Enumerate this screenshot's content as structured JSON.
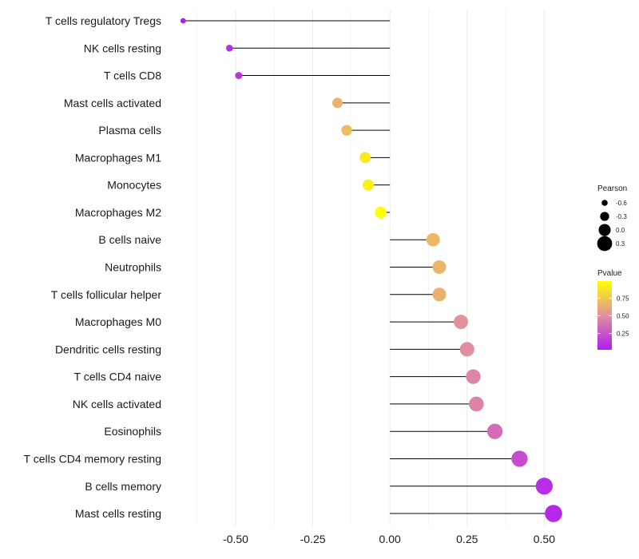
{
  "chart_data": {
    "type": "lollipop",
    "title": "",
    "xlabel": "",
    "ylabel": "",
    "xlim": [
      -0.72,
      0.6
    ],
    "x_ticks": [
      -0.5,
      -0.25,
      0.0,
      0.25,
      0.5
    ],
    "x_tick_labels": [
      "-0.50",
      "-0.25",
      "0.00",
      "0.25",
      "0.50"
    ],
    "categories": [
      "T cells regulatory  Tregs",
      "NK cells resting",
      "T cells CD8",
      "Mast cells activated",
      "Plasma cells",
      "Macrophages M1",
      "Monocytes",
      "Macrophages M2",
      "B cells naive",
      "Neutrophils",
      "T cells follicular helper",
      "Macrophages M0",
      "Dendritic cells resting",
      "T cells CD4 naive",
      "NK cells activated",
      "Eosinophils",
      "T cells CD4 memory resting",
      "B cells memory",
      "Mast cells resting"
    ],
    "pearson": [
      -0.67,
      -0.52,
      -0.49,
      -0.17,
      -0.14,
      -0.08,
      -0.07,
      -0.03,
      0.14,
      0.16,
      0.16,
      0.23,
      0.25,
      0.27,
      0.28,
      0.34,
      0.42,
      0.5,
      0.53
    ],
    "pvalue": [
      0.02,
      0.1,
      0.12,
      0.66,
      0.7,
      0.9,
      0.92,
      0.99,
      0.68,
      0.67,
      0.66,
      0.52,
      0.5,
      0.46,
      0.45,
      0.35,
      0.22,
      0.1,
      0.07
    ],
    "grid": true,
    "legend_size": {
      "title": "Pearson",
      "labels": [
        "-0.6",
        "-0.3",
        "0.0",
        "0.3"
      ],
      "values": [
        -0.6,
        -0.3,
        0.0,
        0.3
      ]
    },
    "legend_color": {
      "title": "Pvalue",
      "labels": [
        "0.75",
        "0.50",
        "0.25"
      ],
      "values": [
        0.75,
        0.5,
        0.25
      ],
      "range": [
        0.02,
        0.99
      ],
      "low_color": "#b01cf0",
      "mid_color": "#e090a0",
      "high_color": "#ffff00"
    },
    "legend_position": "right"
  }
}
